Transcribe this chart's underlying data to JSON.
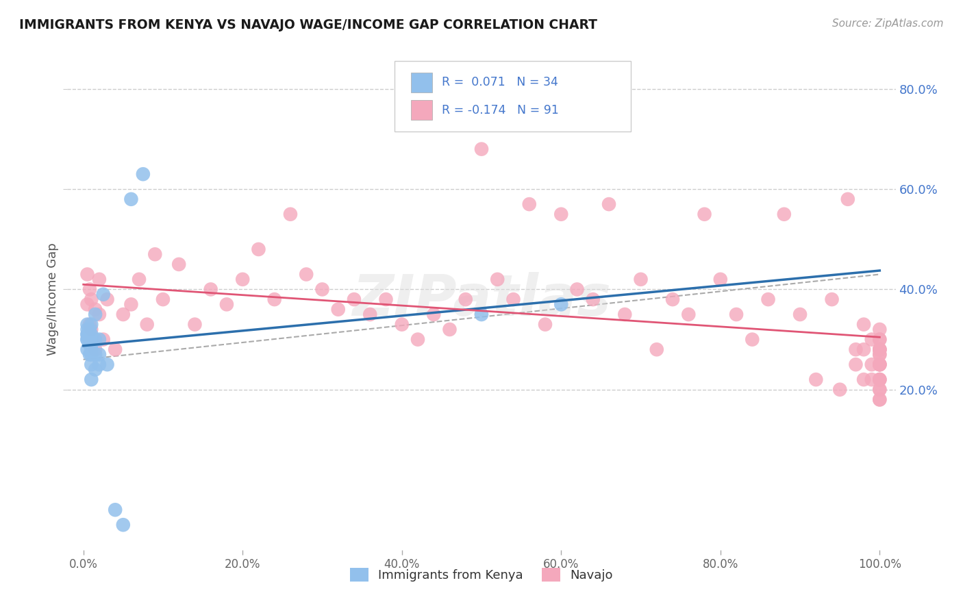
{
  "title": "IMMIGRANTS FROM KENYA VS NAVAJO WAGE/INCOME GAP CORRELATION CHART",
  "source": "Source: ZipAtlas.com",
  "ylabel": "Wage/Income Gap",
  "xlim": [
    -0.02,
    1.02
  ],
  "ylim": [
    -0.12,
    0.88
  ],
  "yticks": [
    0.2,
    0.4,
    0.6,
    0.8
  ],
  "ytick_labels": [
    "20.0%",
    "40.0%",
    "60.0%",
    "80.0%"
  ],
  "xticks": [
    0.0,
    0.2,
    0.4,
    0.6,
    0.8,
    1.0
  ],
  "xtick_labels": [
    "0.0%",
    "20.0%",
    "40.0%",
    "60.0%",
    "80.0%",
    "100.0%"
  ],
  "color_blue": "#92C0EC",
  "color_pink": "#F4A8BC",
  "trendline_blue": "#2C6FAC",
  "trendline_pink": "#E05575",
  "trendline_gray": "#AAAAAA",
  "background": "#FFFFFF",
  "grid_color": "#CCCCCC",
  "title_color": "#1A1A1A",
  "legend_text_color": "#4477CC",
  "blue_scatter_x": [
    0.005,
    0.005,
    0.005,
    0.005,
    0.005,
    0.005,
    0.005,
    0.008,
    0.008,
    0.008,
    0.008,
    0.01,
    0.01,
    0.01,
    0.01,
    0.01,
    0.01,
    0.01,
    0.01,
    0.015,
    0.015,
    0.015,
    0.015,
    0.02,
    0.02,
    0.02,
    0.025,
    0.03,
    0.04,
    0.05,
    0.06,
    0.075,
    0.5,
    0.6
  ],
  "blue_scatter_y": [
    0.28,
    0.3,
    0.3,
    0.31,
    0.31,
    0.32,
    0.33,
    0.27,
    0.29,
    0.3,
    0.32,
    0.22,
    0.25,
    0.27,
    0.28,
    0.29,
    0.3,
    0.31,
    0.33,
    0.24,
    0.27,
    0.3,
    0.35,
    0.25,
    0.27,
    0.3,
    0.39,
    0.25,
    -0.04,
    -0.07,
    0.58,
    0.63,
    0.35,
    0.37
  ],
  "pink_scatter_x": [
    0.005,
    0.005,
    0.008,
    0.008,
    0.01,
    0.01,
    0.015,
    0.015,
    0.02,
    0.02,
    0.025,
    0.03,
    0.04,
    0.05,
    0.06,
    0.07,
    0.08,
    0.09,
    0.1,
    0.12,
    0.14,
    0.16,
    0.18,
    0.2,
    0.22,
    0.24,
    0.26,
    0.28,
    0.3,
    0.32,
    0.34,
    0.36,
    0.38,
    0.4,
    0.42,
    0.44,
    0.46,
    0.48,
    0.5,
    0.52,
    0.54,
    0.56,
    0.58,
    0.6,
    0.62,
    0.64,
    0.66,
    0.68,
    0.7,
    0.72,
    0.74,
    0.76,
    0.78,
    0.8,
    0.82,
    0.84,
    0.86,
    0.88,
    0.9,
    0.92,
    0.94,
    0.95,
    0.96,
    0.97,
    0.97,
    0.98,
    0.98,
    0.98,
    0.99,
    0.99,
    0.99,
    1.0,
    1.0,
    1.0,
    1.0,
    1.0,
    1.0,
    1.0,
    1.0,
    1.0,
    1.0,
    1.0,
    1.0,
    1.0,
    1.0,
    1.0,
    1.0,
    1.0,
    1.0,
    1.0,
    1.0
  ],
  "pink_scatter_y": [
    0.37,
    0.43,
    0.33,
    0.4,
    0.32,
    0.38,
    0.28,
    0.36,
    0.35,
    0.42,
    0.3,
    0.38,
    0.28,
    0.35,
    0.37,
    0.42,
    0.33,
    0.47,
    0.38,
    0.45,
    0.33,
    0.4,
    0.37,
    0.42,
    0.48,
    0.38,
    0.55,
    0.43,
    0.4,
    0.36,
    0.38,
    0.35,
    0.38,
    0.33,
    0.3,
    0.35,
    0.32,
    0.38,
    0.68,
    0.42,
    0.38,
    0.57,
    0.33,
    0.55,
    0.4,
    0.38,
    0.57,
    0.35,
    0.42,
    0.28,
    0.38,
    0.35,
    0.55,
    0.42,
    0.35,
    0.3,
    0.38,
    0.55,
    0.35,
    0.22,
    0.38,
    0.2,
    0.58,
    0.25,
    0.28,
    0.22,
    0.28,
    0.33,
    0.3,
    0.22,
    0.25,
    0.2,
    0.3,
    0.27,
    0.25,
    0.22,
    0.28,
    0.2,
    0.32,
    0.28,
    0.18,
    0.25,
    0.22,
    0.25,
    0.18,
    0.28,
    0.3,
    0.27,
    0.25,
    0.22,
    0.28
  ]
}
